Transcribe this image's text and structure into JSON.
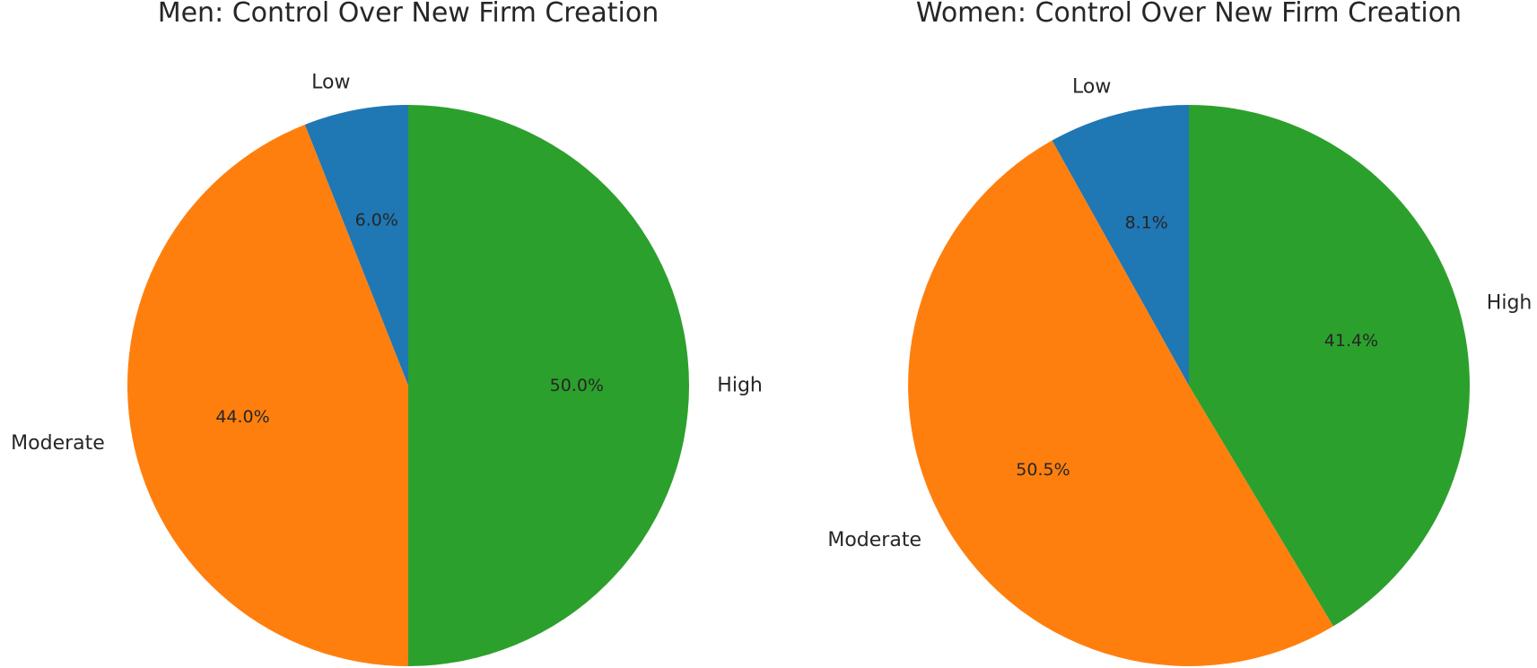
{
  "chart_data": [
    {
      "type": "pie",
      "title": "Men: Control Over New Firm Creation",
      "start_angle_deg": 90,
      "direction": "counterclockwise",
      "slices": [
        {
          "label": "Low",
          "value": 6.0,
          "pct_text": "6.0%",
          "color": "#1f77b4"
        },
        {
          "label": "Moderate",
          "value": 44.0,
          "pct_text": "44.0%",
          "color": "#ff7f0e"
        },
        {
          "label": "High",
          "value": 50.0,
          "pct_text": "50.0%",
          "color": "#2ca02c"
        }
      ]
    },
    {
      "type": "pie",
      "title": "Women: Control Over New Firm Creation",
      "start_angle_deg": 90,
      "direction": "counterclockwise",
      "slices": [
        {
          "label": "Low",
          "value": 8.1,
          "pct_text": "8.1%",
          "color": "#1f77b4"
        },
        {
          "label": "Moderate",
          "value": 50.5,
          "pct_text": "50.5%",
          "color": "#ff7f0e"
        },
        {
          "label": "High",
          "value": 41.4,
          "pct_text": "41.4%",
          "color": "#2ca02c"
        }
      ]
    }
  ]
}
